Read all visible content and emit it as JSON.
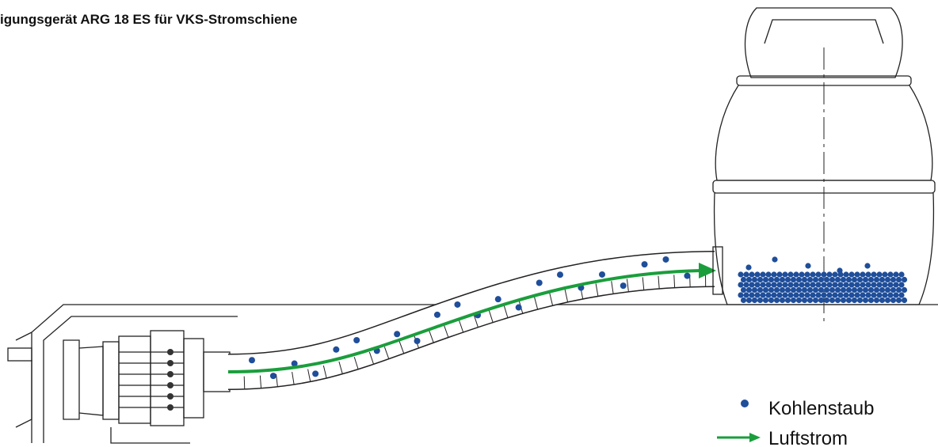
{
  "header": {
    "title": "igungsgerät ARG 18 ES für VKS-Stromschiene"
  },
  "legend": {
    "items": [
      {
        "label": "Kohlenstaub"
      },
      {
        "label": "Luftstrom"
      }
    ]
  }
}
